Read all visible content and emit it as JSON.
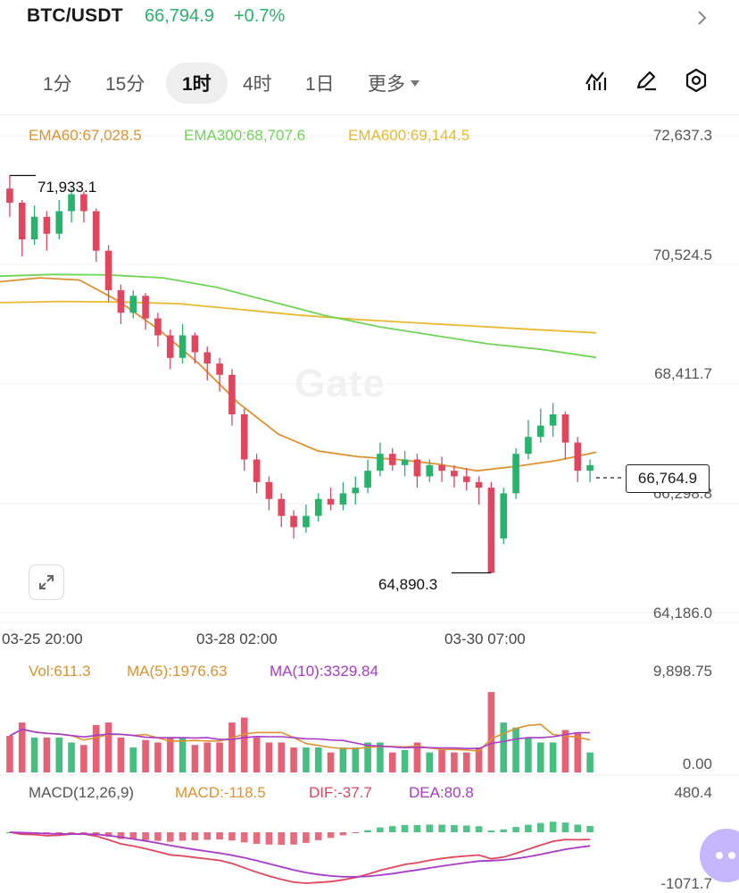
{
  "header": {
    "pair": "BTC/USDT",
    "price": "66,794.9",
    "change": "+0.7%",
    "colors": {
      "up": "#27b36b",
      "down": "#e0465e"
    }
  },
  "tabs": [
    {
      "label": "1分"
    },
    {
      "label": "15分"
    },
    {
      "label": "1时",
      "active": true
    },
    {
      "label": "4时"
    },
    {
      "label": "1日"
    },
    {
      "label": "更多"
    }
  ],
  "toolbar": {
    "icons": [
      "indicator-icon",
      "draw-pen-icon",
      "settings-hexagon-icon"
    ]
  },
  "ema": {
    "ema60": "EMA60:67,028.5",
    "ema300": "EMA300:68,707.6",
    "ema600": "EMA600:69,144.5",
    "colors": {
      "ema60": "#e0912f",
      "ema300": "#6fd655",
      "ema600": "#e8b92e"
    }
  },
  "price_axis": {
    "ticks": [
      "72,637.3",
      "70,524.5",
      "68,411.7",
      "66,298.8",
      "64,186.0"
    ]
  },
  "x_axis": {
    "ticks": [
      "03-25 20:00",
      "03-28 02:00",
      "03-30 07:00"
    ]
  },
  "markers": {
    "high": "71,933.1",
    "low": "64,890.3",
    "last_price": "66,764.9"
  },
  "watermark": "Gate",
  "volume": {
    "vol": "Vol:611.3",
    "ma5": "MA(5):1976.63",
    "ma10": "MA(10):3329.84",
    "axis_top": "9,898.75",
    "axis_bottom": "0.00",
    "colors": {
      "vol": "#e0912f",
      "ma5": "#e0912f",
      "ma10": "#a83ac9"
    }
  },
  "macd": {
    "title": "MACD(12,26,9)",
    "macd": "MACD:-118.5",
    "dif": "DIF:-37.7",
    "dea": "DEA:80.8",
    "axis_top": "480.4",
    "axis_bottom": "-1071.7",
    "colors": {
      "macd": "#e0912f",
      "dif": "#e0465e",
      "dea": "#a83ac9"
    }
  },
  "chart_data": {
    "type": "candlestick",
    "symbol": "BTC/USDT",
    "interval": "1时",
    "price_range": [
      64186.0,
      72637.3
    ],
    "high": 71933.1,
    "low": 64890.3,
    "last": 66764.9,
    "ema60_path": [
      70050,
      70120,
      70080,
      69700,
      69200,
      68600,
      67900,
      67350,
      67050,
      66950,
      66900,
      66820,
      66700,
      66780,
      66880,
      67028.5
    ],
    "ema300_path": [
      70150,
      70180,
      70170,
      70120,
      69950,
      69700,
      69450,
      69250,
      69100,
      68950,
      68850,
      68707.6
    ],
    "ema600_path": [
      69680,
      69700,
      69690,
      69660,
      69560,
      69460,
      69380,
      69320,
      69260,
      69200,
      69144.5
    ],
    "candles": [
      [
        71700,
        71450,
        71933,
        71200
      ],
      [
        71450,
        70800,
        71500,
        70500
      ],
      [
        70800,
        71200,
        71400,
        70700
      ],
      [
        71200,
        70900,
        71300,
        70600
      ],
      [
        70900,
        71300,
        71500,
        70800
      ],
      [
        71300,
        71600,
        71700,
        71100
      ],
      [
        71600,
        71300,
        71650,
        71100
      ],
      [
        71300,
        70600,
        71350,
        70400
      ],
      [
        70600,
        69900,
        70700,
        69700
      ],
      [
        69900,
        69500,
        70000,
        69300
      ],
      [
        69500,
        69800,
        69900,
        69400
      ],
      [
        69800,
        69400,
        69850,
        69200
      ],
      [
        69400,
        69100,
        69500,
        68900
      ],
      [
        69100,
        68700,
        69200,
        68500
      ],
      [
        68700,
        69100,
        69300,
        68600
      ],
      [
        69100,
        68800,
        69150,
        68600
      ],
      [
        68800,
        68600,
        68900,
        68300
      ],
      [
        68600,
        68400,
        68700,
        68100
      ],
      [
        68400,
        67700,
        68500,
        67500
      ],
      [
        67700,
        66900,
        67800,
        66700
      ],
      [
        66900,
        66500,
        67000,
        66300
      ],
      [
        66500,
        66200,
        66600,
        66000
      ],
      [
        66200,
        65900,
        66300,
        65700
      ],
      [
        65900,
        65700,
        66000,
        65500
      ],
      [
        65700,
        65900,
        66100,
        65600
      ],
      [
        65900,
        66200,
        66300,
        65800
      ],
      [
        66200,
        66100,
        66400,
        66000
      ],
      [
        66100,
        66300,
        66500,
        66000
      ],
      [
        66300,
        66400,
        66600,
        66100
      ],
      [
        66400,
        66700,
        66900,
        66300
      ],
      [
        66700,
        67000,
        67200,
        66600
      ],
      [
        67000,
        66800,
        67100,
        66700
      ],
      [
        66800,
        66900,
        67050,
        66600
      ],
      [
        66900,
        66600,
        67000,
        66400
      ],
      [
        66600,
        66800,
        66900,
        66500
      ],
      [
        66800,
        66700,
        66950,
        66500
      ],
      [
        66700,
        66600,
        66800,
        66400
      ],
      [
        66600,
        66500,
        66750,
        66350
      ],
      [
        66500,
        66400,
        66600,
        66100
      ],
      [
        66400,
        64890,
        66500,
        64890
      ],
      [
        65500,
        66300,
        66400,
        65400
      ],
      [
        66300,
        67000,
        67100,
        66200
      ],
      [
        67000,
        67300,
        67600,
        66900
      ],
      [
        67300,
        67500,
        67800,
        67200
      ],
      [
        67500,
        67700,
        67900,
        67300
      ],
      [
        67700,
        67200,
        67750,
        66900
      ],
      [
        67200,
        66700,
        67300,
        66500
      ],
      [
        66700,
        66800,
        66900,
        66500
      ]
    ]
  }
}
